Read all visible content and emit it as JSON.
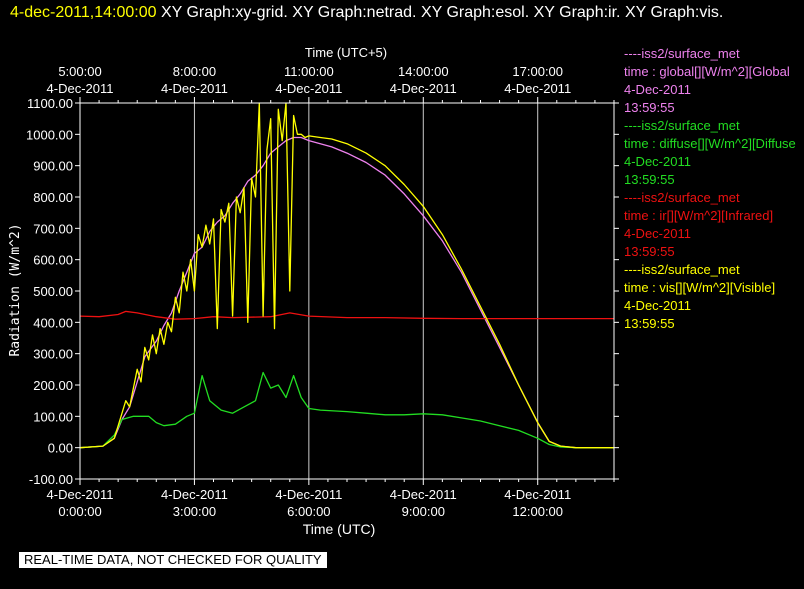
{
  "header": {
    "timestamp": "4-dec-2011,14:00:00",
    "graphs": [
      "XY Graph:xy-grid.",
      "XY Graph:netrad.",
      "XY Graph:esol.",
      "XY Graph:ir.",
      "XY Graph:vis."
    ]
  },
  "footer": "REAL-TIME DATA, NOT CHECKED FOR QUALITY",
  "legend": [
    {
      "source": "----iss2/surface_met",
      "field": "time : global[][W/m^2][Global",
      "date": "4-Dec-2011",
      "time": "13:59:55",
      "color": "#ee82ee"
    },
    {
      "source": "----iss2/surface_met",
      "field": "time : diffuse[][W/m^2][Diffuse",
      "date": "4-Dec-2011",
      "time": "13:59:55",
      "color": "#22dd22"
    },
    {
      "source": "----iss2/surface_met",
      "field": "time : ir[][W/m^2][Infrared]",
      "date": "4-Dec-2011",
      "time": "13:59:55",
      "color": "#ee1111"
    },
    {
      "source": "----iss2/surface_met",
      "field": "time : vis[][W/m^2][Visible]",
      "date": "4-Dec-2011",
      "time": "13:59:55",
      "color": "#ffff00"
    }
  ],
  "chart_data": {
    "type": "line",
    "xlabel": "Time (UTC)",
    "x2label": "Time (UTC+5)",
    "ylabel": "Radiation (W/m^2)",
    "xlim": [
      "4-Dec-2011 0:00:00",
      "4-Dec-2011 14:00:00"
    ],
    "ylim": [
      -100,
      1100
    ],
    "yticks": [
      "-100.00",
      "0.00",
      "100.00",
      "200.00",
      "300.00",
      "400.00",
      "500.00",
      "600.00",
      "700.00",
      "800.00",
      "900.00",
      "1000.00",
      "1100.00"
    ],
    "xticks": [
      {
        "date": "4-Dec-2011",
        "time": "0:00:00"
      },
      {
        "date": "4-Dec-2011",
        "time": "3:00:00"
      },
      {
        "date": "4-Dec-2011",
        "time": "6:00:00"
      },
      {
        "date": "4-Dec-2011",
        "time": "9:00:00"
      },
      {
        "date": "4-Dec-2011",
        "time": "12:00:00"
      }
    ],
    "x2ticks": [
      {
        "time": "5:00:00",
        "date": "4-Dec-2011"
      },
      {
        "time": "8:00:00",
        "date": "4-Dec-2011"
      },
      {
        "time": "11:00:00",
        "date": "4-Dec-2011"
      },
      {
        "time": "14:00:00",
        "date": "4-Dec-2011"
      },
      {
        "time": "17:00:00",
        "date": "4-Dec-2011"
      }
    ],
    "grid": true,
    "series": [
      {
        "name": "global",
        "color": "#ee82ee",
        "x": [
          0,
          0.6,
          0.9,
          1.1,
          1.3,
          1.5,
          1.7,
          2.0,
          2.2,
          2.4,
          2.6,
          2.8,
          3.0,
          3.2,
          3.4,
          3.6,
          3.8,
          4.0,
          4.2,
          4.4,
          4.6,
          4.8,
          5.0,
          5.2,
          5.4,
          5.6,
          5.8,
          6.0,
          6.3,
          6.6,
          7.0,
          7.5,
          8.0,
          8.5,
          9.0,
          9.5,
          10.0,
          10.5,
          11.0,
          11.5,
          12.0,
          12.3,
          12.6,
          13.0,
          13.5,
          14.0
        ],
        "y": [
          0,
          5,
          30,
          90,
          130,
          210,
          290,
          340,
          390,
          430,
          500,
          560,
          620,
          640,
          690,
          720,
          740,
          780,
          810,
          850,
          870,
          900,
          940,
          960,
          980,
          990,
          990,
          980,
          970,
          960,
          940,
          910,
          870,
          810,
          740,
          660,
          560,
          440,
          320,
          200,
          80,
          20,
          5,
          0,
          0,
          0
        ]
      },
      {
        "name": "diffuse",
        "color": "#22dd22",
        "x": [
          0,
          0.6,
          0.9,
          1.1,
          1.4,
          1.8,
          2.0,
          2.2,
          2.5,
          2.8,
          3.0,
          3.2,
          3.4,
          3.7,
          4.0,
          4.3,
          4.6,
          4.8,
          5.0,
          5.2,
          5.4,
          5.6,
          5.8,
          6.0,
          6.3,
          7.0,
          7.5,
          8.0,
          8.5,
          9.0,
          9.5,
          10.0,
          10.5,
          11.0,
          11.5,
          12.0,
          12.3,
          12.6,
          13.0,
          14.0
        ],
        "y": [
          0,
          5,
          40,
          90,
          100,
          100,
          80,
          70,
          75,
          100,
          110,
          230,
          150,
          120,
          110,
          130,
          150,
          240,
          190,
          200,
          160,
          230,
          160,
          125,
          120,
          115,
          110,
          105,
          105,
          108,
          105,
          95,
          85,
          70,
          55,
          30,
          10,
          2,
          0,
          0
        ]
      },
      {
        "name": "ir",
        "color": "#ee1111",
        "x": [
          0,
          0.5,
          1.0,
          1.2,
          1.5,
          2.0,
          2.5,
          3.0,
          3.5,
          4.0,
          5.0,
          5.5,
          6.0,
          7.0,
          8.0,
          9.0,
          10.0,
          11.0,
          12.0,
          13.0,
          14.0
        ],
        "y": [
          420,
          418,
          425,
          435,
          430,
          418,
          410,
          412,
          418,
          415,
          418,
          430,
          420,
          415,
          415,
          413,
          412,
          412,
          412,
          412,
          412
        ]
      },
      {
        "name": "vis",
        "color": "#ffff00",
        "x": [
          0,
          0.6,
          0.9,
          1.1,
          1.2,
          1.3,
          1.5,
          1.6,
          1.7,
          1.8,
          1.9,
          2.0,
          2.1,
          2.2,
          2.3,
          2.4,
          2.5,
          2.6,
          2.7,
          2.8,
          2.9,
          3.0,
          3.1,
          3.2,
          3.3,
          3.4,
          3.5,
          3.6,
          3.7,
          3.8,
          3.9,
          4.0,
          4.1,
          4.2,
          4.3,
          4.4,
          4.5,
          4.6,
          4.7,
          4.8,
          4.9,
          5.0,
          5.1,
          5.2,
          5.3,
          5.4,
          5.5,
          5.6,
          5.7,
          5.8,
          5.9,
          6.0,
          6.3,
          6.6,
          7.0,
          7.5,
          8.0,
          8.5,
          9.0,
          9.5,
          10.0,
          10.5,
          11.0,
          11.5,
          12.0,
          12.3,
          12.6,
          13.0,
          14.0
        ],
        "y": [
          0,
          5,
          30,
          110,
          150,
          130,
          250,
          210,
          320,
          280,
          360,
          300,
          380,
          330,
          400,
          370,
          480,
          430,
          560,
          500,
          600,
          500,
          680,
          640,
          710,
          650,
          730,
          380,
          760,
          720,
          780,
          420,
          800,
          750,
          830,
          400,
          860,
          800,
          1100,
          420,
          950,
          1050,
          380,
          1080,
          980,
          1100,
          500,
          1060,
          1000,
          1000,
          990,
          995,
          990,
          985,
          970,
          940,
          900,
          840,
          770,
          680,
          570,
          450,
          330,
          200,
          80,
          20,
          5,
          0,
          0
        ]
      }
    ]
  }
}
